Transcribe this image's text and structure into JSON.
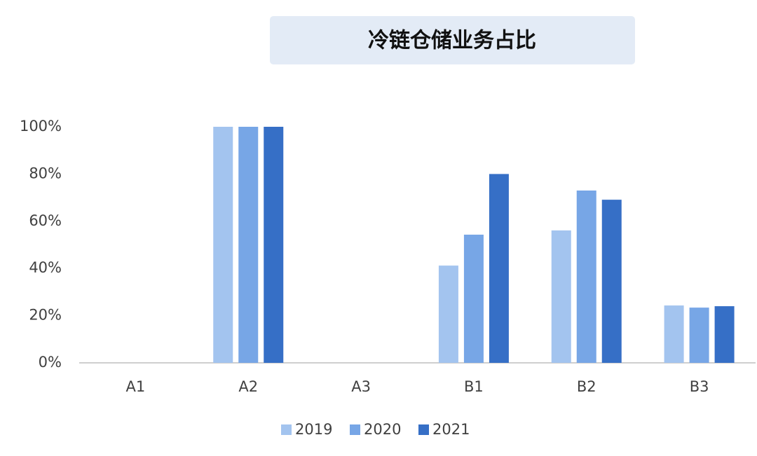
{
  "chart_data": {
    "type": "bar",
    "title": "冷链仓储业务占比",
    "categories": [
      "A1",
      "A2",
      "A3",
      "B1",
      "B2",
      "B3"
    ],
    "series": [
      {
        "name": "2019",
        "color": "#a3c4ef",
        "values": [
          0,
          100,
          0,
          41.2,
          56.1,
          24.3
        ]
      },
      {
        "name": "2020",
        "color": "#77a6e6",
        "values": [
          0,
          100,
          0,
          54.3,
          73,
          23.4
        ]
      },
      {
        "name": "2021",
        "color": "#366fc6",
        "values": [
          0,
          100,
          0,
          80,
          69.1,
          24
        ]
      }
    ],
    "ylim": [
      0,
      100
    ],
    "yticks": [
      {
        "value": 0,
        "label": "0%"
      },
      {
        "value": 20,
        "label": "20%"
      },
      {
        "value": 40,
        "label": "40%"
      },
      {
        "value": 60,
        "label": "60%"
      },
      {
        "value": 80,
        "label": "80%"
      },
      {
        "value": 100,
        "label": "100%"
      }
    ],
    "grid": false,
    "legend": "bottom"
  }
}
